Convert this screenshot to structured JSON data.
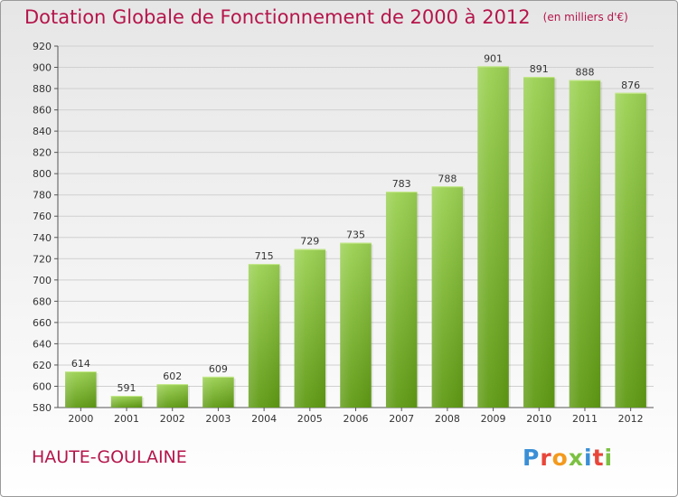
{
  "header": {
    "title": "Dotation Globale de Fonctionnement de 2000 à 2012",
    "unit": "(en milliers d'€)"
  },
  "footer": {
    "commune": "HAUTE-GOULAINE",
    "logo_letters": [
      {
        "char": "P",
        "color": "#3b8fd6"
      },
      {
        "char": "r",
        "color": "#e8463a"
      },
      {
        "char": "o",
        "color": "#f39a1e"
      },
      {
        "char": "x",
        "color": "#7cc142"
      },
      {
        "char": "i",
        "color": "#3b8fd6"
      },
      {
        "char": "t",
        "color": "#e8463a"
      },
      {
        "char": "i",
        "color": "#7cc142"
      }
    ]
  },
  "chart_data": {
    "type": "bar",
    "title": "Dotation Globale de Fonctionnement de 2000 à 2012",
    "subtitle": "(en milliers d'€)",
    "categories": [
      "2000",
      "2001",
      "2002",
      "2003",
      "2004",
      "2005",
      "2006",
      "2007",
      "2008",
      "2009",
      "2010",
      "2011",
      "2012"
    ],
    "values": [
      614,
      591,
      602,
      609,
      715,
      729,
      735,
      783,
      788,
      901,
      891,
      888,
      876
    ],
    "ylim": [
      580,
      920
    ],
    "yticks": [
      580,
      600,
      620,
      640,
      660,
      680,
      700,
      720,
      740,
      760,
      780,
      800,
      820,
      840,
      860,
      880,
      900,
      920
    ],
    "grid": true,
    "bar_color_top": "#9bd152",
    "bar_color_bottom": "#5f9a14"
  }
}
